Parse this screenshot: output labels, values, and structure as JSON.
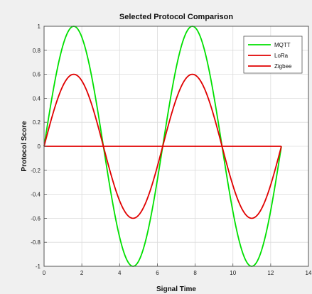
{
  "chart_data": {
    "type": "line",
    "title": "Selected Protocol Comparison",
    "xlabel": "Signal Time",
    "ylabel": "Protocol Score",
    "xlim": [
      0,
      14
    ],
    "ylim": [
      -1,
      1
    ],
    "xticks": [
      0,
      2,
      4,
      6,
      8,
      10,
      12,
      14
    ],
    "yticks": [
      -1,
      -0.8,
      -0.6,
      -0.4,
      -0.2,
      0,
      0.2,
      0.4,
      0.6,
      0.8,
      1
    ],
    "xtick_labels": [
      "0",
      "2",
      "4",
      "6",
      "8",
      "10",
      "12",
      "14"
    ],
    "ytick_labels": [
      "-1",
      "-0.8",
      "-0.6",
      "-0.4",
      "-0.2",
      "0",
      "0.2",
      "0.4",
      "0.6",
      "0.8",
      "1"
    ],
    "grid": true,
    "legend_position": "top-right",
    "x_domain": [
      0,
      12.566
    ],
    "series": [
      {
        "name": "MQTT",
        "function": "sin(x)",
        "amplitude": 1.0,
        "color": "#00e000"
      },
      {
        "name": "LoRa",
        "function": "0.6*sin(x)",
        "amplitude": 0.6,
        "color": "#e00000"
      },
      {
        "name": "Zigbee",
        "function": "0",
        "amplitude": 0.0,
        "color": "#e00000"
      }
    ]
  }
}
